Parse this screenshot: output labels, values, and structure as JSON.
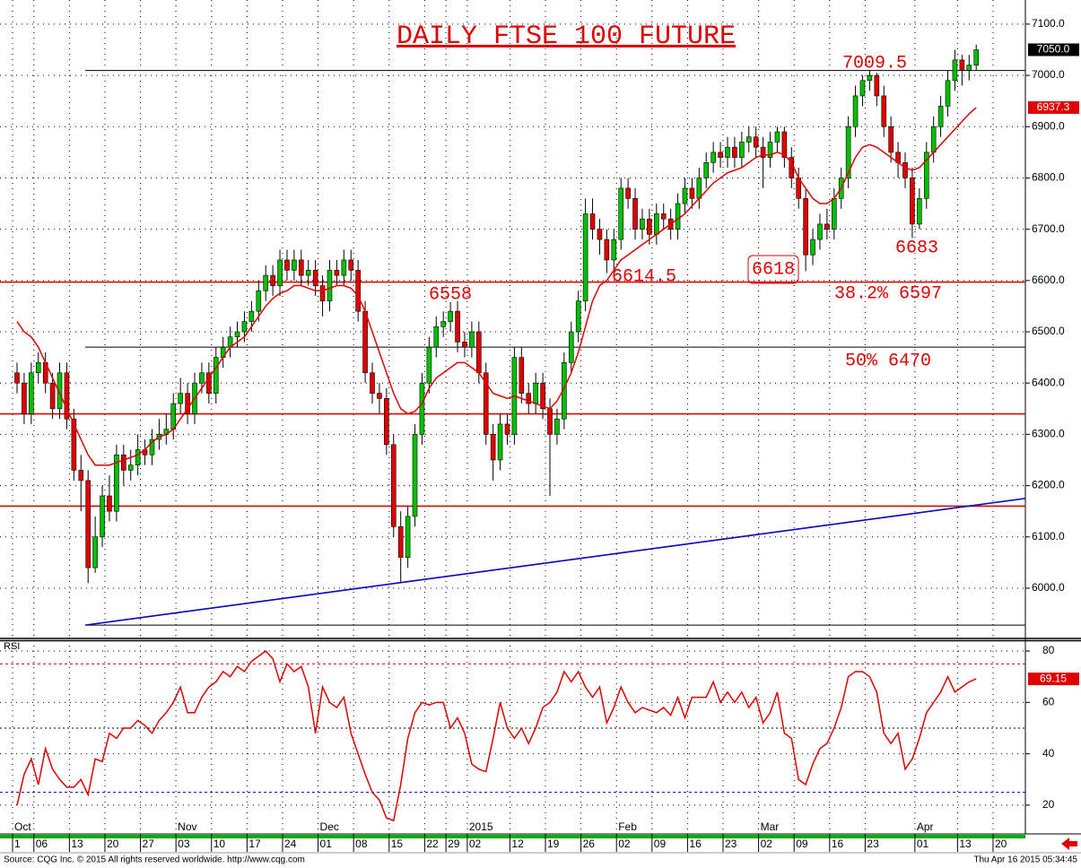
{
  "chart_data": [
    {
      "type": "candlestick",
      "title": "DAILY FTSE 100 FUTURE",
      "ylim": [
        5902,
        7147
      ],
      "yticks": [
        {
          "value": 6000,
          "label": "6000.0"
        },
        {
          "value": 6100,
          "label": "6100.0"
        },
        {
          "value": 6200,
          "label": "6200.0"
        },
        {
          "value": 6300,
          "label": "6300.0"
        },
        {
          "value": 6400,
          "label": "6400.0"
        },
        {
          "value": 6500,
          "label": "6500.0"
        },
        {
          "value": 6600,
          "label": "6600.0"
        },
        {
          "value": 6700,
          "label": "6700.0"
        },
        {
          "value": 6800,
          "label": "6800.0"
        },
        {
          "value": 6900,
          "label": "6900.0"
        },
        {
          "value": 7000,
          "label": "7000.0"
        },
        {
          "value": 7100,
          "label": "7100.0"
        }
      ],
      "grid": true,
      "candles": {
        "up_color": "#00c000",
        "down_color": "#e00000",
        "last_label": "7050.0",
        "open": [
          6420,
          6400,
          6340,
          6420,
          6440,
          6400,
          6350,
          6420,
          6330,
          6230,
          6210,
          6040,
          6100,
          6180,
          6150,
          6260,
          6230,
          6240,
          6270,
          6260,
          6290,
          6300,
          6310,
          6360,
          6380,
          6340,
          6400,
          6420,
          6380,
          6450,
          6470,
          6490,
          6500,
          6520,
          6540,
          6580,
          6610,
          6590,
          6640,
          6620,
          6640,
          6610,
          6620,
          6590,
          6560,
          6620,
          6610,
          6640,
          6620,
          6540,
          6420,
          6380,
          6370,
          6280,
          6120,
          6060,
          6140,
          6300,
          6400,
          6470,
          6510,
          6520,
          6540,
          6480,
          6470,
          6500,
          6420,
          6300,
          6250,
          6320,
          6300,
          6450,
          6380,
          6360,
          6400,
          6350,
          6300,
          6330,
          6440,
          6500,
          6560,
          6730,
          6700,
          6680,
          6640,
          6680,
          6780,
          6760,
          6700,
          6720,
          6690,
          6730,
          6720,
          6700,
          6750,
          6780,
          6760,
          6800,
          6830,
          6850,
          6840,
          6860,
          6840,
          6870,
          6880,
          6860,
          6840,
          6870,
          6890,
          6840,
          6800,
          6760,
          6650,
          6680,
          6710,
          6700,
          6760,
          6800,
          6900,
          6960,
          6990,
          7000,
          6960,
          6900,
          6850,
          6830,
          6800,
          6710,
          6760,
          6850,
          6900,
          6940,
          6990,
          7030,
          7010,
          7020
        ],
        "high": [
          6440,
          6420,
          6440,
          6460,
          6460,
          6420,
          6440,
          6440,
          6350,
          6260,
          6230,
          6140,
          6200,
          6220,
          6280,
          6280,
          6270,
          6300,
          6290,
          6310,
          6330,
          6340,
          6380,
          6410,
          6400,
          6420,
          6440,
          6440,
          6470,
          6490,
          6510,
          6520,
          6540,
          6560,
          6600,
          6630,
          6630,
          6660,
          6660,
          6660,
          6660,
          6640,
          6640,
          6610,
          6640,
          6640,
          6660,
          6660,
          6640,
          6560,
          6440,
          6400,
          6390,
          6300,
          6150,
          6160,
          6320,
          6420,
          6490,
          6530,
          6540,
          6558,
          6560,
          6500,
          6520,
          6520,
          6440,
          6320,
          6340,
          6340,
          6470,
          6470,
          6400,
          6420,
          6420,
          6370,
          6350,
          6460,
          6520,
          6580,
          6760,
          6760,
          6720,
          6700,
          6700,
          6800,
          6800,
          6780,
          6740,
          6740,
          6750,
          6750,
          6740,
          6770,
          6800,
          6800,
          6820,
          6850,
          6870,
          6870,
          6880,
          6880,
          6890,
          6900,
          6900,
          6880,
          6890,
          6900,
          6900,
          6860,
          6820,
          6780,
          6700,
          6730,
          6740,
          6780,
          6820,
          6920,
          6980,
          7000,
          7009.5,
          7005,
          6980,
          6920,
          6870,
          6850,
          6820,
          6780,
          6870,
          6920,
          6960,
          7010,
          7050,
          7040,
          7040,
          7060
        ],
        "low": [
          6380,
          6320,
          6320,
          6400,
          6380,
          6330,
          6330,
          6310,
          6210,
          6150,
          6010,
          6030,
          6080,
          6130,
          6130,
          6200,
          6210,
          6220,
          6240,
          6240,
          6270,
          6280,
          6290,
          6340,
          6320,
          6320,
          6380,
          6360,
          6360,
          6430,
          6450,
          6470,
          6480,
          6500,
          6520,
          6560,
          6570,
          6570,
          6600,
          6600,
          6590,
          6590,
          6570,
          6530,
          6540,
          6590,
          6590,
          6600,
          6520,
          6400,
          6360,
          6340,
          6260,
          6100,
          6010,
          6040,
          6120,
          6280,
          6380,
          6450,
          6490,
          6500,
          6460,
          6450,
          6450,
          6400,
          6280,
          6210,
          6230,
          6280,
          6280,
          6360,
          6340,
          6340,
          6330,
          6180,
          6280,
          6310,
          6420,
          6480,
          6540,
          6680,
          6650,
          6614.5,
          6620,
          6660,
          6740,
          6680,
          6680,
          6670,
          6670,
          6700,
          6680,
          6680,
          6730,
          6740,
          6740,
          6780,
          6810,
          6820,
          6820,
          6820,
          6820,
          6850,
          6840,
          6780,
          6820,
          6850,
          6820,
          6780,
          6740,
          6618,
          6630,
          6660,
          6680,
          6680,
          6740,
          6780,
          6880,
          6940,
          6970,
          6940,
          6880,
          6830,
          6800,
          6780,
          6683,
          6700,
          6740,
          6830,
          6880,
          6920,
          6970,
          6980,
          6990,
          7010
        ],
        "close": [
          6400,
          6340,
          6420,
          6440,
          6400,
          6350,
          6420,
          6330,
          6230,
          6210,
          6040,
          6100,
          6180,
          6150,
          6260,
          6230,
          6240,
          6270,
          6260,
          6290,
          6300,
          6310,
          6360,
          6380,
          6340,
          6400,
          6420,
          6380,
          6450,
          6470,
          6490,
          6500,
          6520,
          6540,
          6580,
          6610,
          6590,
          6640,
          6620,
          6640,
          6610,
          6620,
          6590,
          6560,
          6620,
          6610,
          6640,
          6620,
          6540,
          6420,
          6380,
          6370,
          6280,
          6120,
          6060,
          6140,
          6300,
          6400,
          6470,
          6510,
          6520,
          6540,
          6480,
          6470,
          6500,
          6420,
          6300,
          6250,
          6320,
          6300,
          6450,
          6380,
          6360,
          6400,
          6350,
          6300,
          6330,
          6440,
          6500,
          6560,
          6730,
          6700,
          6680,
          6640,
          6680,
          6780,
          6760,
          6700,
          6720,
          6690,
          6730,
          6720,
          6700,
          6750,
          6780,
          6760,
          6800,
          6830,
          6850,
          6840,
          6860,
          6840,
          6870,
          6880,
          6860,
          6840,
          6870,
          6890,
          6840,
          6800,
          6760,
          6650,
          6680,
          6710,
          6700,
          6760,
          6800,
          6900,
          6960,
          6990,
          7000,
          6960,
          6900,
          6850,
          6830,
          6800,
          6710,
          6760,
          6850,
          6900,
          6940,
          6990,
          7030,
          7010,
          7020,
          7050
        ]
      },
      "ma": {
        "color": "#e00000",
        "last_label": "6937.3",
        "values": [
          6520,
          6500,
          6490,
          6470,
          6440,
          6410,
          6380,
          6350,
          6320,
          6290,
          6260,
          6240,
          6240,
          6240,
          6245,
          6250,
          6255,
          6260,
          6270,
          6285,
          6295,
          6300,
          6310,
          6330,
          6350,
          6370,
          6390,
          6410,
          6430,
          6450,
          6470,
          6480,
          6490,
          6510,
          6530,
          6550,
          6565,
          6575,
          6580,
          6590,
          6590,
          6585,
          6580,
          6580,
          6585,
          6590,
          6590,
          6585,
          6570,
          6540,
          6500,
          6460,
          6420,
          6380,
          6350,
          6340,
          6345,
          6360,
          6390,
          6410,
          6420,
          6430,
          6440,
          6440,
          6430,
          6420,
          6400,
          6380,
          6375,
          6370,
          6375,
          6370,
          6365,
          6360,
          6355,
          6350,
          6365,
          6390,
          6420,
          6460,
          6510,
          6560,
          6590,
          6600,
          6620,
          6640,
          6650,
          6660,
          6670,
          6680,
          6690,
          6700,
          6710,
          6720,
          6730,
          6745,
          6760,
          6775,
          6790,
          6800,
          6810,
          6815,
          6820,
          6830,
          6840,
          6845,
          6845,
          6850,
          6845,
          6830,
          6800,
          6780,
          6760,
          6750,
          6750,
          6760,
          6780,
          6810,
          6840,
          6860,
          6865,
          6860,
          6850,
          6840,
          6830,
          6820,
          6815,
          6820,
          6835,
          6850,
          6865,
          6880,
          6895,
          6910,
          6925,
          6937.3
        ]
      },
      "levels": [
        {
          "value": 7009.5,
          "color": "#000000"
        },
        {
          "value": 6597,
          "color": "#e00000"
        },
        {
          "value": 6470,
          "color": "#000000"
        },
        {
          "value": 6340,
          "color": "#e00000"
        },
        {
          "value": 6160,
          "color": "#e00000"
        },
        {
          "value": 5928,
          "color": "#000000"
        }
      ],
      "trendline": {
        "color": "#0000cc",
        "x": [
          9.6,
          141.9
        ],
        "values": [
          5928,
          6175
        ]
      },
      "annotations": [
        "7009.5",
        "6558",
        "6614.5",
        "6618",
        "38.2% 6597",
        "50% 6470",
        "6683"
      ]
    },
    {
      "type": "line",
      "label": "RSI",
      "ylim": [
        8.8,
        84.2
      ],
      "yticks": [
        20,
        40,
        60,
        80
      ],
      "grid": true,
      "color": "#e00000",
      "values": [
        20,
        32,
        38,
        28,
        42,
        34,
        30,
        27,
        27,
        30,
        24,
        38,
        37,
        48,
        46,
        50,
        50,
        53,
        51,
        48,
        53,
        56,
        60,
        66,
        56,
        56,
        62,
        66,
        68,
        72,
        70,
        74,
        72,
        76,
        78,
        80,
        77,
        68,
        75,
        72,
        74,
        66,
        48,
        66,
        60,
        58,
        62,
        48,
        40,
        32,
        25,
        22,
        15,
        14,
        28,
        46,
        56,
        60,
        59,
        60,
        60,
        50,
        54,
        48,
        36,
        34,
        33,
        46,
        60,
        50,
        46,
        50,
        44,
        50,
        58,
        60,
        64,
        72,
        68,
        72,
        66,
        62,
        66,
        52,
        58,
        66,
        60,
        56,
        58,
        57,
        56,
        58,
        55,
        62,
        54,
        62,
        62,
        62,
        68,
        60,
        64,
        60,
        64,
        58,
        62,
        52,
        56,
        64,
        48,
        46,
        30,
        28,
        36,
        42,
        44,
        50,
        58,
        70,
        72,
        72,
        70,
        64,
        48,
        44,
        48,
        34,
        38,
        46,
        56,
        60,
        64,
        70,
        64,
        66,
        68,
        69.15,
        null,
        null,
        null
      ],
      "levels": [
        {
          "value": 75,
          "color": "#e00000",
          "style": "dashed"
        },
        {
          "value": 50,
          "color": "#000000",
          "style": "dotted"
        },
        {
          "value": 25,
          "color": "#0000cc",
          "style": "dashed"
        }
      ],
      "categories": [
        "1",
        null,
        null,
        "06",
        null,
        null,
        null,
        null,
        "13",
        null,
        null,
        null,
        null,
        "20",
        null,
        null,
        null,
        null,
        "27",
        null,
        null,
        null,
        null,
        "03",
        null,
        null,
        null,
        null,
        "10",
        null,
        null,
        null,
        null,
        "17",
        null,
        null,
        null,
        null,
        "24",
        null,
        null,
        null,
        null,
        "01",
        null,
        null,
        null,
        null,
        "08",
        null,
        null,
        null,
        null,
        "15",
        null,
        null,
        null,
        null,
        "22",
        null,
        null,
        "29",
        null,
        null,
        "02",
        null,
        null,
        null,
        null,
        null,
        "12",
        null,
        null,
        null,
        null,
        "19",
        null,
        null,
        null,
        null,
        "26",
        null,
        null,
        null,
        null,
        "02",
        null,
        null,
        null,
        null,
        "09",
        null,
        null,
        null,
        null,
        "16",
        null,
        null,
        null,
        null,
        "23",
        null,
        null,
        null,
        null,
        "02",
        null,
        null,
        null,
        null,
        "09",
        null,
        null,
        null,
        null,
        "16",
        null,
        null,
        null,
        null,
        "23",
        null,
        null,
        null,
        null,
        null,
        null,
        "01",
        null,
        null,
        null,
        null,
        null,
        "13",
        null,
        null,
        null,
        null,
        "20"
      ],
      "months": [
        "Oct",
        null,
        null,
        null,
        null,
        null,
        null,
        null,
        null,
        null,
        null,
        null,
        null,
        null,
        null,
        null,
        null,
        null,
        null,
        null,
        null,
        null,
        null,
        "Nov",
        null,
        null,
        null,
        null,
        null,
        null,
        null,
        null,
        null,
        null,
        null,
        null,
        null,
        null,
        null,
        null,
        null,
        null,
        null,
        "Dec",
        null,
        null,
        null,
        null,
        null,
        null,
        null,
        null,
        null,
        null,
        null,
        null,
        null,
        null,
        null,
        null,
        null,
        null,
        null,
        null,
        "2015",
        null,
        null,
        null,
        null,
        null,
        null,
        null,
        null,
        null,
        null,
        null,
        null,
        null,
        null,
        null,
        null,
        null,
        null,
        null,
        null,
        "Feb",
        null,
        null,
        null,
        null,
        null,
        null,
        null,
        null,
        null,
        null,
        null,
        null,
        null,
        null,
        null,
        null,
        null,
        null,
        null,
        "Mar",
        null,
        null,
        null,
        null,
        null,
        null,
        null,
        null,
        null,
        null,
        null,
        null,
        null,
        null,
        null,
        null,
        null,
        null,
        null,
        null,
        null,
        "Apr",
        null,
        null,
        null,
        null,
        null,
        null,
        null,
        null,
        null,
        null,
        null
      ]
    }
  ],
  "footer": {
    "source": "Source: CQG Inc. © 2015 All rights reserved worldwide. http://www.cqg.com",
    "timestamp": "Thu Apr 16 2015 05:34:45"
  }
}
